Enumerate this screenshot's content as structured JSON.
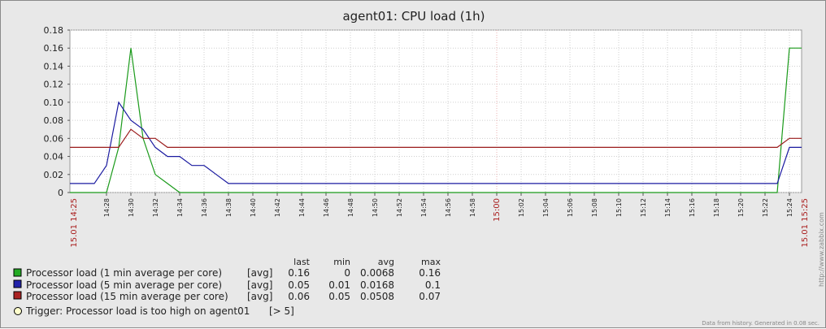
{
  "chart_data": {
    "type": "line",
    "title": "agent01: CPU load (1h)",
    "time_range": {
      "start_label": "15.01 14:25",
      "end_label": "15.01 15:25"
    },
    "x_tick_labels": [
      "14:28",
      "14:30",
      "14:32",
      "14:34",
      "14:36",
      "14:38",
      "14:40",
      "14:42",
      "14:44",
      "14:46",
      "14:48",
      "14:50",
      "14:52",
      "14:54",
      "14:56",
      "14:58",
      "15:00",
      "15:02",
      "15:04",
      "15:06",
      "15:08",
      "15:10",
      "15:12",
      "15:14",
      "15:16",
      "15:18",
      "15:20",
      "15:22",
      "15:24"
    ],
    "highlight_tick": "15:00",
    "y_tick_labels": [
      "0",
      "0.02",
      "0.04",
      "0.06",
      "0.08",
      "0.10",
      "0.12",
      "0.14",
      "0.16",
      "0.18"
    ],
    "ylim": [
      0,
      0.18
    ],
    "grid": true,
    "legend_headers": {
      "last": "last",
      "min": "min",
      "avg": "avg",
      "max": "max"
    },
    "series": [
      {
        "name": "Processor load (1 min average per core)",
        "func": "[avg]",
        "color": "#1a9a1a",
        "swatch": "#22aa22",
        "last": "0.16",
        "min": "0",
        "avg": "0.0068",
        "max": "0.16",
        "points": [
          [
            "14:25",
            0.0
          ],
          [
            "14:28",
            0.0
          ],
          [
            "14:29",
            0.05
          ],
          [
            "14:30",
            0.16
          ],
          [
            "14:31",
            0.06
          ],
          [
            "14:32",
            0.02
          ],
          [
            "14:33",
            0.01
          ],
          [
            "14:34",
            0.0
          ],
          [
            "14:38",
            0.0
          ],
          [
            "15:00",
            0.0
          ],
          [
            "15:20",
            0.0
          ],
          [
            "15:23",
            0.0
          ],
          [
            "15:24",
            0.16
          ],
          [
            "15:25",
            0.16
          ]
        ]
      },
      {
        "name": "Processor load (5 min average per core)",
        "func": "[avg]",
        "color": "#1a1aa0",
        "swatch": "#2222aa",
        "last": "0.05",
        "min": "0.01",
        "avg": "0.0168",
        "max": "0.1",
        "points": [
          [
            "14:25",
            0.01
          ],
          [
            "14:27",
            0.01
          ],
          [
            "14:28",
            0.03
          ],
          [
            "14:29",
            0.1
          ],
          [
            "14:30",
            0.08
          ],
          [
            "14:31",
            0.07
          ],
          [
            "14:32",
            0.05
          ],
          [
            "14:33",
            0.04
          ],
          [
            "14:34",
            0.04
          ],
          [
            "14:35",
            0.03
          ],
          [
            "14:36",
            0.03
          ],
          [
            "14:37",
            0.02
          ],
          [
            "14:38",
            0.01
          ],
          [
            "15:00",
            0.01
          ],
          [
            "15:23",
            0.01
          ],
          [
            "15:24",
            0.05
          ],
          [
            "15:25",
            0.05
          ]
        ]
      },
      {
        "name": "Processor load (15 min average per core)",
        "func": "[avg]",
        "color": "#9a1a1a",
        "swatch": "#aa2222",
        "last": "0.06",
        "min": "0.05",
        "avg": "0.0508",
        "max": "0.07",
        "points": [
          [
            "14:25",
            0.05
          ],
          [
            "14:28",
            0.05
          ],
          [
            "14:29",
            0.05
          ],
          [
            "14:30",
            0.07
          ],
          [
            "14:31",
            0.06
          ],
          [
            "14:32",
            0.06
          ],
          [
            "14:33",
            0.05
          ],
          [
            "15:00",
            0.05
          ],
          [
            "15:23",
            0.05
          ],
          [
            "15:24",
            0.06
          ],
          [
            "15:25",
            0.06
          ]
        ]
      }
    ],
    "trigger": {
      "label": "Trigger: Processor load is too high on agent01",
      "condition": "[> 5]",
      "color": "#ffffcc"
    },
    "footer_note": "Data from history. Generated in 0.08 sec.",
    "watermark": "http://www.zabbix.com"
  }
}
